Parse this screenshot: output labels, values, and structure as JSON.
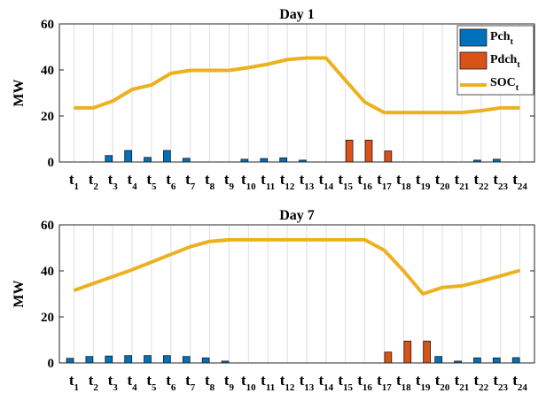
{
  "chart_data": [
    {
      "type": "bar",
      "title": "Day 1",
      "ylabel": "MW",
      "xlabel": "",
      "ylim": [
        0,
        60
      ],
      "yticks": [
        0,
        20,
        40,
        60
      ],
      "grid": "vertical",
      "legend_position": "top-right",
      "categories": [
        {
          "base": "t",
          "sub": "1"
        },
        {
          "base": "t",
          "sub": "2"
        },
        {
          "base": "t",
          "sub": "3"
        },
        {
          "base": "t",
          "sub": "4"
        },
        {
          "base": "t",
          "sub": "5"
        },
        {
          "base": "t",
          "sub": "6"
        },
        {
          "base": "t",
          "sub": "7"
        },
        {
          "base": "t",
          "sub": "8"
        },
        {
          "base": "t",
          "sub": "9"
        },
        {
          "base": "t",
          "sub": "10"
        },
        {
          "base": "t",
          "sub": "11"
        },
        {
          "base": "t",
          "sub": "12"
        },
        {
          "base": "t",
          "sub": "13"
        },
        {
          "base": "t",
          "sub": "14"
        },
        {
          "base": "t",
          "sub": "15"
        },
        {
          "base": "t",
          "sub": "16"
        },
        {
          "base": "t",
          "sub": "17"
        },
        {
          "base": "t",
          "sub": "18"
        },
        {
          "base": "t",
          "sub": "19"
        },
        {
          "base": "t",
          "sub": "20"
        },
        {
          "base": "t",
          "sub": "21"
        },
        {
          "base": "t",
          "sub": "22"
        },
        {
          "base": "t",
          "sub": "23"
        },
        {
          "base": "t",
          "sub": "24"
        }
      ],
      "series": [
        {
          "name": "Pch",
          "name_sub": "t",
          "kind": "bar",
          "color": "#0072BD",
          "values": [
            0,
            0,
            2.8,
            5.0,
            2.0,
            5.0,
            1.6,
            0,
            0,
            1.2,
            1.5,
            1.8,
            0.8,
            0,
            0,
            0,
            0,
            0,
            0,
            0,
            0,
            0.8,
            1.2,
            0
          ]
        },
        {
          "name": "Pdch",
          "name_sub": "t",
          "kind": "bar",
          "color": "#D95319",
          "values": [
            0,
            0,
            0,
            0,
            0,
            0,
            0,
            0,
            0,
            0,
            0,
            0,
            0,
            0,
            9.5,
            9.5,
            4.8,
            0,
            0,
            0,
            0,
            0,
            0,
            0
          ]
        },
        {
          "name": "SOC",
          "name_sub": "t",
          "kind": "line",
          "color": "#EDB120",
          "values": [
            23.5,
            23.5,
            26.5,
            31.5,
            33.5,
            38.5,
            39.8,
            39.8,
            39.8,
            41,
            42.5,
            44.5,
            45.2,
            45.2,
            35.5,
            26,
            21.5,
            21.5,
            21.5,
            21.5,
            21.5,
            22.3,
            23.5,
            23.5
          ]
        }
      ]
    },
    {
      "type": "bar",
      "title": "Day 7",
      "ylabel": "MW",
      "xlabel": "",
      "ylim": [
        0,
        60
      ],
      "yticks": [
        0,
        20,
        40,
        60
      ],
      "grid": "vertical",
      "categories": [
        {
          "base": "t",
          "sub": "1"
        },
        {
          "base": "t",
          "sub": "2"
        },
        {
          "base": "t",
          "sub": "3"
        },
        {
          "base": "t",
          "sub": "4"
        },
        {
          "base": "t",
          "sub": "5"
        },
        {
          "base": "t",
          "sub": "6"
        },
        {
          "base": "t",
          "sub": "7"
        },
        {
          "base": "t",
          "sub": "8"
        },
        {
          "base": "t",
          "sub": "9"
        },
        {
          "base": "t",
          "sub": "10"
        },
        {
          "base": "t",
          "sub": "11"
        },
        {
          "base": "t",
          "sub": "12"
        },
        {
          "base": "t",
          "sub": "13"
        },
        {
          "base": "t",
          "sub": "14"
        },
        {
          "base": "t",
          "sub": "15"
        },
        {
          "base": "t",
          "sub": "16"
        },
        {
          "base": "t",
          "sub": "17"
        },
        {
          "base": "t",
          "sub": "18"
        },
        {
          "base": "t",
          "sub": "19"
        },
        {
          "base": "t",
          "sub": "20"
        },
        {
          "base": "t",
          "sub": "21"
        },
        {
          "base": "t",
          "sub": "22"
        },
        {
          "base": "t",
          "sub": "23"
        },
        {
          "base": "t",
          "sub": "24"
        }
      ],
      "series": [
        {
          "name": "Pch",
          "name_sub": "t",
          "kind": "bar",
          "color": "#0072BD",
          "values": [
            2.0,
            2.8,
            3.0,
            3.2,
            3.2,
            3.2,
            2.8,
            2.2,
            0.8,
            0,
            0,
            0,
            0,
            0,
            0,
            0,
            0,
            0,
            0,
            2.8,
            0.8,
            2.2,
            2.2,
            2.3
          ]
        },
        {
          "name": "Pdch",
          "name_sub": "t",
          "kind": "bar",
          "color": "#D95319",
          "values": [
            0,
            0,
            0,
            0,
            0,
            0,
            0,
            0,
            0,
            0,
            0,
            0,
            0,
            0,
            0,
            0,
            4.7,
            9.5,
            9.5,
            0,
            0,
            0,
            0,
            0
          ]
        },
        {
          "name": "SOC",
          "name_sub": "t",
          "kind": "line",
          "color": "#EDB120",
          "values": [
            31.5,
            34.5,
            37.5,
            40.5,
            43.8,
            47.2,
            50.5,
            52.8,
            53.5,
            53.5,
            53.5,
            53.5,
            53.5,
            53.5,
            53.5,
            53.5,
            49,
            40,
            30,
            32.8,
            33.5,
            35.5,
            37.8,
            40.2
          ]
        }
      ]
    }
  ]
}
